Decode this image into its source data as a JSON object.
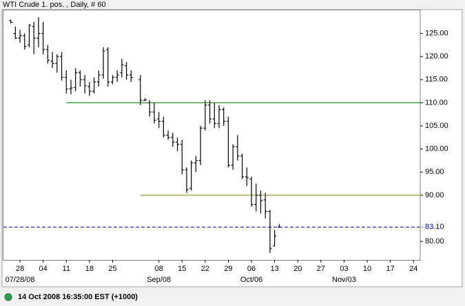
{
  "chart_data": {
    "type": "ohlc",
    "title": "WTI Crude 1. pos. , Daily, # 60",
    "categories": [
      null,
      null,
      "28",
      null,
      null,
      null,
      null,
      "04",
      null,
      null,
      null,
      null,
      "11",
      null,
      null,
      null,
      null,
      "18",
      null,
      null,
      null,
      null,
      "25",
      null,
      null,
      null,
      null,
      null,
      null,
      null,
      null,
      null,
      "08",
      null,
      null,
      null,
      null,
      "15",
      null,
      null,
      null,
      null,
      "22",
      null,
      null,
      null,
      null,
      "29",
      null,
      null,
      null,
      null,
      "06",
      null,
      null,
      null,
      null,
      "13",
      null,
      null,
      null,
      null,
      "20",
      null,
      null,
      null,
      null,
      "27",
      null,
      null,
      null,
      null,
      "03",
      null,
      null,
      null,
      null,
      "10",
      null,
      null,
      null,
      null,
      "17",
      null,
      null,
      null,
      null,
      "24",
      null
    ],
    "category_sublabels": [
      null,
      null,
      "07/28/08",
      null,
      null,
      null,
      null,
      null,
      null,
      null,
      null,
      null,
      null,
      null,
      null,
      null,
      null,
      null,
      null,
      null,
      null,
      null,
      null,
      null,
      null,
      null,
      null,
      null,
      null,
      null,
      null,
      null,
      "Sep/08",
      null,
      null,
      null,
      null,
      null,
      null,
      null,
      null,
      null,
      null,
      null,
      null,
      null,
      null,
      null,
      null,
      null,
      null,
      null,
      "Oct/06",
      null,
      null,
      null,
      null,
      null,
      null,
      null,
      null,
      null,
      null,
      null,
      null,
      null,
      null,
      null,
      null,
      null,
      null,
      null,
      "Nov/03",
      null,
      null,
      null,
      null,
      null,
      null,
      null,
      null,
      null,
      null,
      null,
      null,
      null,
      null,
      null,
      null
    ],
    "open": [
      127.8,
      125.0,
      124.0,
      124.5,
      122.5,
      126.5,
      124.0,
      125.0,
      121.5,
      119.0,
      118.5,
      120.0,
      115.5,
      113.0,
      113.3,
      116.5,
      115.0,
      113.5,
      112.5,
      114.5,
      116.0,
      121.5,
      114.5,
      115.5,
      116.5,
      118.0,
      116.0,
      null,
      115.0,
      110.5,
      110.0,
      108.0,
      106.5,
      106.0,
      103.0,
      102.5,
      101.5,
      101.0,
      95.5,
      91.5,
      97.0,
      97.5,
      104.5,
      109.5,
      106.5,
      105.5,
      108.5,
      106.0,
      96.5,
      100.5,
      98.5,
      94.0,
      93.5,
      88.0,
      90.0,
      89.0,
      86.5,
      79.0,
      83.1,
      null,
      null,
      null,
      null,
      null,
      null,
      null,
      null,
      null,
      null,
      null,
      null,
      null,
      null,
      null,
      null,
      null,
      null,
      null,
      null,
      null,
      null,
      null,
      null,
      null,
      null,
      null,
      null,
      null,
      null
    ],
    "high": [
      128.0,
      126.5,
      125.8,
      125.0,
      127.0,
      127.5,
      128.5,
      127.5,
      122.5,
      121.0,
      120.5,
      121.0,
      117.0,
      115.0,
      117.5,
      117.0,
      116.0,
      114.5,
      115.5,
      117.0,
      122.0,
      122.0,
      116.0,
      117.0,
      119.5,
      118.8,
      117.0,
      null,
      116.0,
      111.0,
      110.5,
      110.0,
      108.0,
      107.0,
      104.0,
      103.5,
      102.5,
      102.0,
      96.0,
      97.5,
      98.5,
      105.0,
      110.5,
      110.5,
      110.0,
      109.5,
      109.0,
      107.0,
      101.0,
      103.0,
      99.0,
      96.0,
      94.0,
      92.5,
      91.0,
      90.5,
      86.8,
      82.5,
      83.8,
      null,
      null,
      null,
      null,
      null,
      null,
      null,
      null,
      null,
      null,
      null,
      null,
      null,
      null,
      null,
      null,
      null,
      null,
      null,
      null,
      null,
      null,
      null,
      null,
      null,
      null,
      null,
      null,
      null,
      null
    ],
    "low": [
      127.2,
      123.8,
      123.0,
      121.5,
      122.0,
      120.5,
      122.0,
      120.5,
      118.5,
      117.5,
      116.5,
      114.8,
      112.0,
      111.8,
      112.5,
      113.5,
      112.0,
      111.5,
      112.0,
      113.5,
      115.2,
      113.5,
      114.0,
      114.5,
      115.5,
      115.0,
      114.5,
      null,
      109.5,
      110.4,
      107.0,
      105.5,
      104.5,
      102.5,
      102.0,
      100.5,
      99.5,
      94.5,
      90.5,
      91.0,
      95.0,
      96.5,
      104.0,
      105.5,
      104.5,
      104.5,
      105.0,
      96.0,
      95.5,
      97.5,
      93.5,
      92.0,
      87.5,
      86.5,
      86.0,
      85.0,
      77.5,
      79.0,
      83.0,
      null,
      null,
      null,
      null,
      null,
      null,
      null,
      null,
      null,
      null,
      null,
      null,
      null,
      null,
      null,
      null,
      null,
      null,
      null,
      null,
      null,
      null,
      null,
      null,
      null,
      null,
      null,
      null,
      null,
      null
    ],
    "close": [
      127.4,
      124.0,
      124.5,
      122.2,
      126.8,
      124.0,
      125.0,
      121.5,
      119.2,
      118.5,
      120.0,
      115.5,
      113.0,
      113.2,
      116.5,
      115.0,
      113.7,
      112.5,
      114.5,
      116.0,
      121.2,
      114.5,
      115.5,
      116.0,
      118.2,
      116.0,
      115.5,
      null,
      110.5,
      110.6,
      108.0,
      106.2,
      106.0,
      103.0,
      102.5,
      101.5,
      101.0,
      95.5,
      91.2,
      97.0,
      97.5,
      104.5,
      109.5,
      106.5,
      105.5,
      108.5,
      106.0,
      96.5,
      100.5,
      98.5,
      94.0,
      93.8,
      88.0,
      90.0,
      88.8,
      86.5,
      78.5,
      81.2,
      83.1,
      null,
      null,
      null,
      null,
      null,
      null,
      null,
      null,
      null,
      null,
      null,
      null,
      null,
      null,
      null,
      null,
      null,
      null,
      null,
      null,
      null,
      null,
      null,
      null,
      null,
      null,
      null,
      null,
      null,
      null
    ],
    "color": "#000000",
    "ylim": [
      76,
      130
    ],
    "yticks": [
      {
        "value": 80,
        "label": "80.00"
      },
      {
        "value": 90,
        "label": "90.00"
      },
      {
        "value": 95,
        "label": "95.00"
      },
      {
        "value": 100,
        "label": "100.00"
      },
      {
        "value": 105,
        "label": "105.00"
      },
      {
        "value": 110,
        "label": "110.00"
      },
      {
        "value": 115,
        "label": "115.00"
      },
      {
        "value": 120,
        "label": "120.00"
      },
      {
        "value": 125,
        "label": "125.00"
      }
    ],
    "hlines": [
      {
        "value": 110,
        "start": 12,
        "color": "#008000"
      },
      {
        "value": 90,
        "start": 28,
        "color": "#808000"
      }
    ],
    "last_price": {
      "value": 83.1,
      "label": "83.10",
      "color": "#0000cc"
    }
  },
  "status": {
    "timestamp": "14 Oct 2008 16:35:00 EST (+1000)"
  }
}
